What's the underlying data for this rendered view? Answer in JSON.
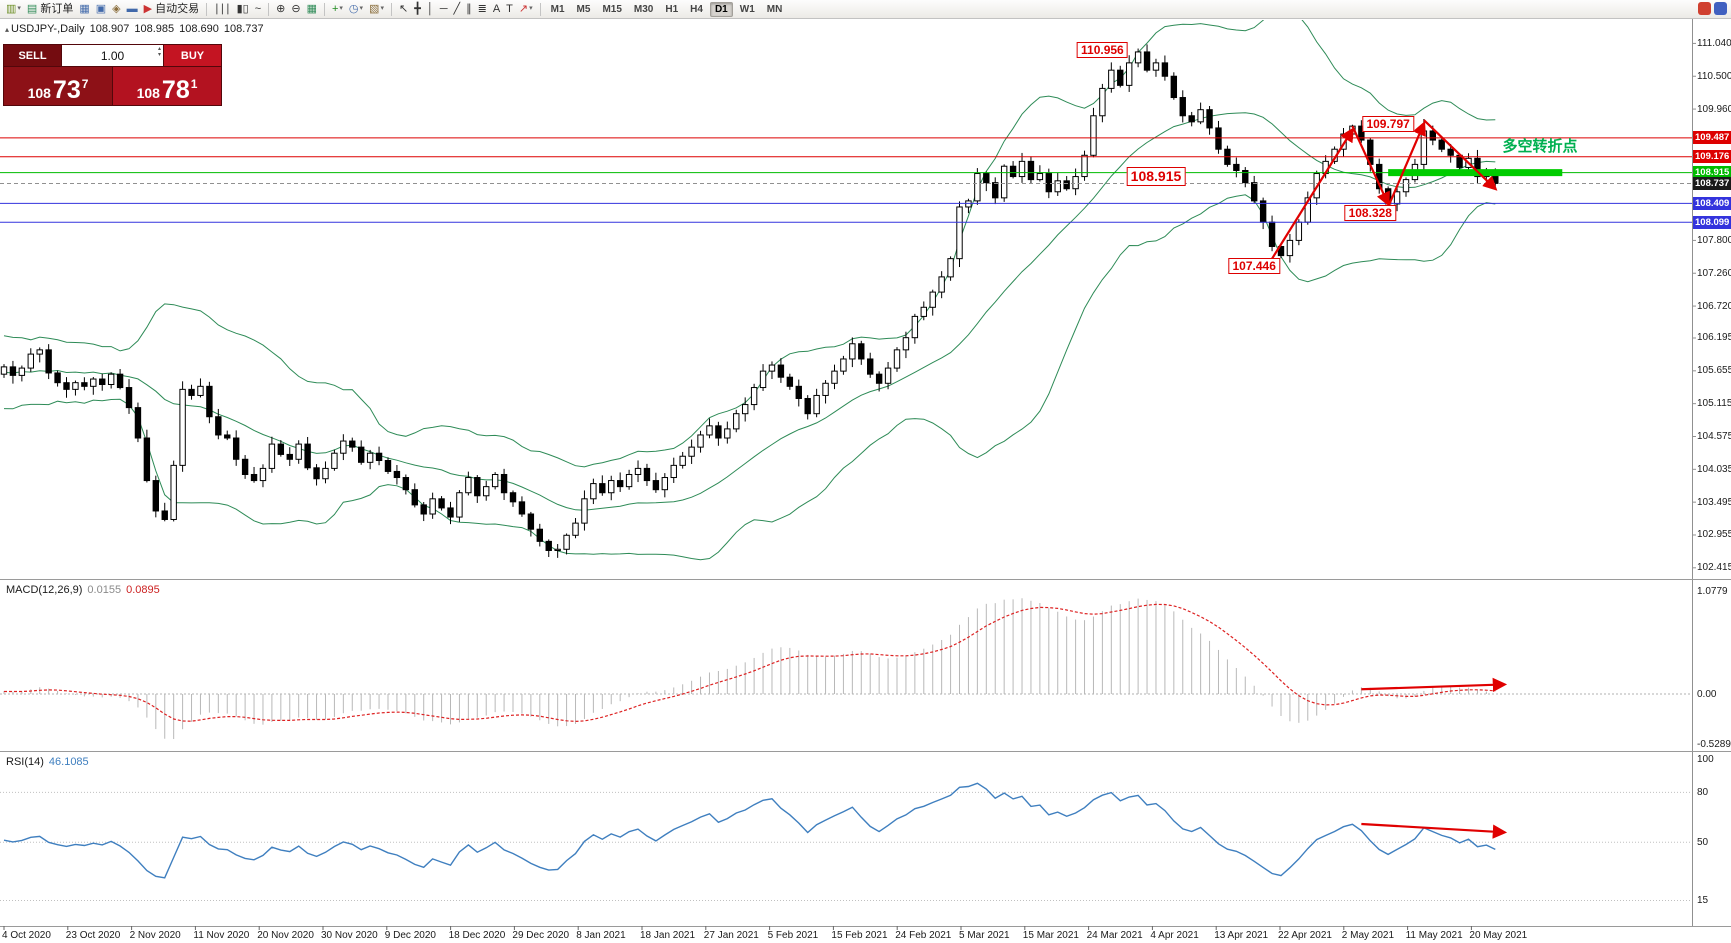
{
  "toolbar": {
    "buttons": [
      {
        "name": "new-chart-button",
        "glyph": "▥",
        "color": "#6b8e23",
        "dropdown": true
      },
      {
        "name": "new-order-button",
        "glyph": "▤",
        "color": "#2e8b57",
        "label": "新订单"
      },
      {
        "name": "market-watch-button",
        "glyph": "▦",
        "color": "#4169aa"
      },
      {
        "name": "data-window-button",
        "glyph": "▣",
        "color": "#4169aa"
      },
      {
        "name": "navigator-button",
        "glyph": "◈",
        "color": "#8a6d3b"
      },
      {
        "name": "terminal-button",
        "glyph": "▬",
        "color": "#4169aa"
      },
      {
        "name": "autotrading-button",
        "glyph": "▶",
        "color": "#cc3333",
        "label": "自动交易"
      },
      {
        "sep": true
      },
      {
        "name": "bar-chart-type-button",
        "glyph": "∣∣∣",
        "color": "#333333"
      },
      {
        "name": "candle-chart-type-button",
        "glyph": "▮▯",
        "color": "#333333"
      },
      {
        "name": "line-chart-type-button",
        "glyph": "~",
        "color": "#333333"
      },
      {
        "sep": true
      },
      {
        "name": "zoom-in-button",
        "glyph": "⊕",
        "color": "#333333"
      },
      {
        "name": "zoom-out-button",
        "glyph": "⊖",
        "color": "#333333"
      },
      {
        "name": "grid-button",
        "glyph": "▦",
        "color": "#2e8b57"
      },
      {
        "sep": true
      },
      {
        "name": "indicators-button",
        "glyph": "+",
        "color": "#1f8b1f",
        "dropdown": true
      },
      {
        "name": "periods-button",
        "glyph": "◷",
        "color": "#4169aa",
        "dropdown": true
      },
      {
        "name": "templates-button",
        "glyph": "▧",
        "color": "#8a6d3b",
        "dropdown": true
      },
      {
        "sep": true
      },
      {
        "name": "cursor-button",
        "glyph": "↖",
        "color": "#333333"
      },
      {
        "name": "crosshair-button",
        "glyph": "╋",
        "color": "#333333"
      },
      {
        "name": "vertical-line-button",
        "glyph": "│",
        "color": "#333333"
      },
      {
        "name": "horizontal-line-button",
        "glyph": "─",
        "color": "#333333"
      },
      {
        "name": "trendline-button",
        "glyph": "╱",
        "color": "#333333"
      },
      {
        "name": "channel-button",
        "glyph": "∥",
        "color": "#333333"
      },
      {
        "name": "fibonacci-button",
        "glyph": "≣",
        "color": "#333333"
      },
      {
        "name": "text-button",
        "glyph": "A",
        "color": "#333333"
      },
      {
        "name": "label-button",
        "glyph": "T",
        "color": "#333333"
      },
      {
        "name": "arrows-button",
        "glyph": "↗",
        "color": "#cc3333",
        "dropdown": true
      },
      {
        "sep": true
      }
    ],
    "timeframes": [
      {
        "label": "M1"
      },
      {
        "label": "M5"
      },
      {
        "label": "M15"
      },
      {
        "label": "M30"
      },
      {
        "label": "H1"
      },
      {
        "label": "H4"
      },
      {
        "label": "D1",
        "active": true
      },
      {
        "label": "W1"
      },
      {
        "label": "MN"
      }
    ],
    "right_icons": [
      {
        "name": "toolbar-extra-icon-red",
        "color": "#d04030"
      },
      {
        "name": "toolbar-extra-icon-blue",
        "color": "#4060c0"
      }
    ]
  },
  "chart_info": {
    "marker": "▴",
    "symbol": "USDJPY-,Daily",
    "open": "108.907",
    "high": "108.985",
    "low": "108.690",
    "close": "108.737"
  },
  "trade_panel": {
    "sell_label": "SELL",
    "buy_label": "BUY",
    "volume": "1.00",
    "bid_base": "108",
    "bid_pips": "73",
    "bid_frac": "7",
    "ask_base": "108",
    "ask_pips": "78",
    "ask_frac": "1"
  },
  "macd": {
    "label": "MACD(12,26,9)",
    "value_main": "0.0155",
    "value_signal": "0.0895",
    "axis_max": "1.0779",
    "axis_zero": "0.00",
    "axis_min": "-0.5289"
  },
  "rsi": {
    "label": "RSI(14)",
    "value": "46.1085",
    "axis_labels": [
      {
        "v": 100,
        "text": "100"
      },
      {
        "v": 80,
        "text": "80"
      },
      {
        "v": 50,
        "text": "50"
      },
      {
        "v": 15,
        "text": "15"
      }
    ],
    "levels": [
      80,
      50,
      15
    ]
  },
  "chart_data": {
    "type": "candlestick",
    "symbol": "USDJPY",
    "timeframe": "Daily",
    "indicators": [
      "Bollinger Bands (20,2)",
      "MACD(12,26,9)",
      "RSI(14)"
    ],
    "last_ohlc": {
      "open": 108.907,
      "high": 108.985,
      "low": 108.69,
      "close": 108.737
    },
    "open_first": 105.6,
    "warmup": [
      105.5,
      105.9,
      105.2,
      106.1,
      105.55,
      105.85,
      105.15,
      106.0,
      105.35,
      105.7,
      105.2,
      105.95,
      105.4,
      106.05,
      105.6,
      105.25,
      105.8,
      105.45,
      105.9,
      105.55
    ],
    "closes": [
      105.72,
      105.58,
      105.7,
      105.93,
      106.0,
      105.62,
      105.46,
      105.35,
      105.46,
      105.4,
      105.52,
      105.43,
      105.6,
      105.38,
      105.05,
      104.55,
      103.85,
      103.35,
      103.21,
      104.1,
      105.35,
      105.25,
      105.4,
      104.9,
      104.6,
      104.55,
      104.2,
      103.95,
      103.85,
      104.05,
      104.45,
      104.28,
      104.2,
      104.45,
      104.06,
      103.88,
      104.05,
      104.3,
      104.5,
      104.4,
      104.15,
      104.3,
      104.18,
      104.0,
      103.9,
      103.7,
      103.45,
      103.3,
      103.55,
      103.4,
      103.25,
      103.65,
      103.9,
      103.6,
      103.75,
      103.95,
      103.65,
      103.5,
      103.3,
      103.05,
      102.85,
      102.7,
      102.72,
      102.95,
      103.15,
      103.55,
      103.8,
      103.65,
      103.85,
      103.75,
      103.95,
      104.05,
      103.85,
      103.7,
      103.9,
      104.1,
      104.25,
      104.4,
      104.6,
      104.75,
      104.55,
      104.7,
      104.95,
      105.1,
      105.38,
      105.65,
      105.75,
      105.55,
      105.4,
      105.2,
      104.95,
      105.25,
      105.45,
      105.65,
      105.85,
      106.1,
      105.85,
      105.6,
      105.45,
      105.7,
      106.0,
      106.2,
      106.55,
      106.7,
      106.95,
      107.2,
      107.5,
      108.35,
      108.45,
      108.9,
      108.75,
      108.5,
      109.02,
      108.85,
      109.1,
      108.8,
      108.9,
      108.6,
      108.78,
      108.65,
      108.85,
      109.2,
      109.85,
      110.3,
      110.6,
      110.35,
      110.72,
      110.9,
      110.6,
      110.72,
      110.5,
      110.15,
      109.85,
      109.75,
      109.95,
      109.65,
      109.3,
      109.05,
      108.95,
      108.75,
      108.45,
      108.1,
      107.7,
      107.55,
      107.8,
      108.1,
      108.5,
      108.9,
      109.1,
      109.3,
      109.55,
      109.68,
      109.45,
      109.05,
      108.65,
      108.4,
      108.6,
      108.8,
      109.05,
      109.6,
      109.45,
      109.3,
      109.2,
      109.0,
      109.15,
      108.85,
      108.91,
      108.737
    ],
    "wick_overrides": {
      "18": {
        "low": 103.18
      },
      "61": {
        "low": 102.593
      },
      "127": {
        "high": 110.956
      },
      "151": {
        "high": 109.703
      },
      "155": {
        "low": 108.328
      },
      "159": {
        "high": 109.797
      },
      "167": {
        "high": 108.985,
        "low": 108.69
      }
    },
    "price_axis": [
      "111.040",
      "110.500",
      "109.960",
      "109.420",
      "108.880",
      "108.340",
      "107.800",
      "107.260",
      "106.720",
      "106.195",
      "105.655",
      "105.115",
      "104.575",
      "104.035",
      "103.495",
      "102.955",
      "102.415"
    ],
    "hlines": [
      {
        "price": 109.487,
        "color": "#dd0000",
        "style": "solid"
      },
      {
        "price": 109.176,
        "color": "#dd0000",
        "style": "solid"
      },
      {
        "price": 108.915,
        "color": "#00bb00",
        "style": "solid"
      },
      {
        "price": 108.737,
        "color": "#909090",
        "style": "dash"
      },
      {
        "price": 108.409,
        "color": "#3333dd",
        "style": "solid"
      },
      {
        "price": 108.099,
        "color": "#3333dd",
        "style": "solid"
      }
    ],
    "thick_segment": {
      "price": 108.915,
      "bar_from": 155,
      "bar_to": 174.5,
      "color": "#00cc00",
      "width": 7
    },
    "price_boxes": [
      {
        "text": "109.487",
        "color": "#dd0000"
      },
      {
        "text": "109.176",
        "color": "#dd0000"
      },
      {
        "text": "108.915",
        "color": "#00bb00"
      },
      {
        "text": "108.737",
        "color": "#1a1a1a"
      },
      {
        "text": "108.409",
        "color": "#3333dd"
      },
      {
        "text": "108.099",
        "color": "#3333dd"
      }
    ],
    "annotations": [
      {
        "text": "110.956",
        "bar": 123,
        "price": 110.93
      },
      {
        "text": "109.797",
        "bar": 155,
        "price": 109.71
      },
      {
        "text": "108.915",
        "bar": 129,
        "price": 108.86,
        "big": true
      },
      {
        "text": "108.328",
        "bar": 153,
        "price": 108.25
      },
      {
        "text": "107.446",
        "bar": 140,
        "price": 107.38
      }
    ],
    "note": {
      "text": "多空转折点",
      "bar": 172,
      "price": 109.42,
      "color": "#00b050"
    },
    "trend_arrows": [
      [
        [
          142,
          107.5
        ],
        [
          151,
          109.62
        ]
      ],
      [
        [
          151,
          109.68
        ],
        [
          155,
          108.4
        ]
      ],
      [
        [
          155,
          108.35
        ],
        [
          159,
          109.72
        ]
      ],
      [
        [
          159,
          109.78
        ],
        [
          167,
          108.65
        ]
      ]
    ],
    "macd_arrow": [
      [
        152,
        0.05
      ],
      [
        168,
        0.1
      ]
    ],
    "rsi_arrow": [
      [
        152,
        61
      ],
      [
        168,
        56
      ]
    ],
    "dates": [
      "4 Oct 2020",
      "23 Oct 2020",
      "2 Nov 2020",
      "11 Nov 2020",
      "20 Nov 2020",
      "30 Nov 2020",
      "9 Dec 2020",
      "18 Dec 2020",
      "29 Dec 2020",
      "8 Jan 2021",
      "18 Jan 2021",
      "27 Jan 2021",
      "5 Feb 2021",
      "15 Feb 2021",
      "24 Feb 2021",
      "5 Mar 2021",
      "15 Mar 2021",
      "24 Mar 2021",
      "4 Apr 2021",
      "13 Apr 2021",
      "22 Apr 2021",
      "2 May 2021",
      "11 May 2021",
      "20 May 2021"
    ],
    "bollinger": {
      "period": 20,
      "deviation": 2
    }
  }
}
